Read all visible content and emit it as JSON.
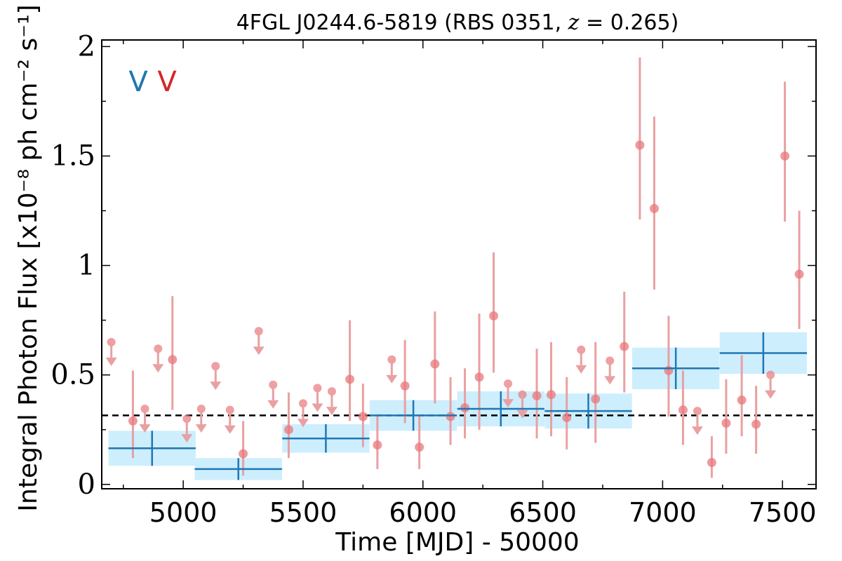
{
  "chart_data": {
    "type": "scatter",
    "title": "4FGL J0244.6-5819 (RBS 0351, z = 0.265)",
    "title_prefix": "4FGL J0244.6-5819 (RBS 0351, ",
    "title_var": "z",
    "title_eq": " = 0.265)",
    "xlabel": "Time [MJD] - 50000",
    "ylabel": "Integral Photon Flux [x10⁻⁸ ph cm⁻² s⁻¹]",
    "xlim": [
      4660,
      7640
    ],
    "ylim": [
      -0.02,
      2.03
    ],
    "x_ticks": [
      5000,
      5500,
      6000,
      6500,
      7000,
      7500
    ],
    "x_tick_labels": [
      "5000",
      "5500",
      "6000",
      "6500",
      "7000",
      "7500"
    ],
    "y_ticks": [
      0,
      0.5,
      1,
      1.5,
      2
    ],
    "y_tick_labels": [
      "0",
      "0.5",
      "1",
      "1.5",
      "2"
    ],
    "grid": false,
    "mean_flux": 0.315,
    "legend_markers": [
      {
        "text": "V",
        "color": "#1f77b4"
      },
      {
        "text": "V",
        "color": "#d62728"
      }
    ],
    "colors": {
      "points": "#e8777b",
      "errorbars": "#e9a0a2",
      "bins_line": "#1f77b4",
      "bins_fill": "#cdeefd",
      "mean_line": "#000000"
    },
    "binned": [
      {
        "x": 4870,
        "xerr": 182,
        "y": 0.165,
        "yerr": 0.08
      },
      {
        "x": 5230,
        "xerr": 182,
        "y": 0.07,
        "yerr": 0.05
      },
      {
        "x": 5595,
        "xerr": 182,
        "y": 0.21,
        "yerr": 0.065
      },
      {
        "x": 5960,
        "xerr": 182,
        "y": 0.315,
        "yerr": 0.07
      },
      {
        "x": 6325,
        "xerr": 182,
        "y": 0.345,
        "yerr": 0.08
      },
      {
        "x": 6690,
        "xerr": 182,
        "y": 0.335,
        "yerr": 0.08
      },
      {
        "x": 7055,
        "xerr": 182,
        "y": 0.53,
        "yerr": 0.095
      },
      {
        "x": 7420,
        "xerr": 182,
        "y": 0.6,
        "yerr": 0.095
      }
    ],
    "points": [
      {
        "x": 4790,
        "y": 0.29,
        "lo": 0.12,
        "hi": 0.52
      },
      {
        "x": 4955,
        "y": 0.57,
        "lo": 0.34,
        "hi": 0.86
      },
      {
        "x": 5250,
        "y": 0.14,
        "lo": 0.04,
        "hi": 0.29
      },
      {
        "x": 5440,
        "y": 0.25,
        "lo": 0.12,
        "hi": 0.42
      },
      {
        "x": 5695,
        "y": 0.48,
        "lo": 0.29,
        "hi": 0.75
      },
      {
        "x": 5750,
        "y": 0.31,
        "lo": 0.17,
        "hi": 0.46
      },
      {
        "x": 5810,
        "y": 0.18,
        "lo": 0.07,
        "hi": 0.32
      },
      {
        "x": 5925,
        "y": 0.45,
        "lo": 0.28,
        "hi": 0.66
      },
      {
        "x": 5985,
        "y": 0.17,
        "lo": 0.07,
        "hi": 0.32
      },
      {
        "x": 6050,
        "y": 0.55,
        "lo": 0.37,
        "hi": 0.79
      },
      {
        "x": 6115,
        "y": 0.31,
        "lo": 0.18,
        "hi": 0.49
      },
      {
        "x": 6175,
        "y": 0.35,
        "lo": 0.21,
        "hi": 0.53
      },
      {
        "x": 6235,
        "y": 0.49,
        "lo": 0.25,
        "hi": 0.78
      },
      {
        "x": 6295,
        "y": 0.77,
        "lo": 0.51,
        "hi": 1.06
      },
      {
        "x": 6475,
        "y": 0.405,
        "lo": 0.21,
        "hi": 0.62
      },
      {
        "x": 6535,
        "y": 0.41,
        "lo": 0.22,
        "hi": 0.65
      },
      {
        "x": 6600,
        "y": 0.305,
        "lo": 0.16,
        "hi": 0.49
      },
      {
        "x": 6720,
        "y": 0.39,
        "lo": 0.19,
        "hi": 0.65
      },
      {
        "x": 6840,
        "y": 0.63,
        "lo": 0.42,
        "hi": 0.88
      },
      {
        "x": 6905,
        "y": 1.55,
        "lo": 1.21,
        "hi": 1.95
      },
      {
        "x": 6965,
        "y": 1.26,
        "lo": 0.89,
        "hi": 1.68
      },
      {
        "x": 7025,
        "y": 0.52,
        "lo": 0.31,
        "hi": 0.77
      },
      {
        "x": 7085,
        "y": 0.34,
        "lo": 0.18,
        "hi": 0.52
      },
      {
        "x": 7205,
        "y": 0.1,
        "lo": 0.03,
        "hi": 0.22
      },
      {
        "x": 7265,
        "y": 0.28,
        "lo": 0.14,
        "hi": 0.48
      },
      {
        "x": 7330,
        "y": 0.385,
        "lo": 0.22,
        "hi": 0.59
      },
      {
        "x": 7390,
        "y": 0.275,
        "lo": 0.14,
        "hi": 0.45
      },
      {
        "x": 7510,
        "y": 1.5,
        "lo": 1.2,
        "hi": 1.84
      },
      {
        "x": 7570,
        "y": 0.96,
        "lo": 0.71,
        "hi": 1.25
      }
    ],
    "upper_limits": [
      {
        "x": 4700,
        "y": 0.65
      },
      {
        "x": 4840,
        "y": 0.345
      },
      {
        "x": 4895,
        "y": 0.62
      },
      {
        "x": 5015,
        "y": 0.3
      },
      {
        "x": 5075,
        "y": 0.345
      },
      {
        "x": 5135,
        "y": 0.54
      },
      {
        "x": 5195,
        "y": 0.34
      },
      {
        "x": 5315,
        "y": 0.7
      },
      {
        "x": 5375,
        "y": 0.455
      },
      {
        "x": 5500,
        "y": 0.37
      },
      {
        "x": 5560,
        "y": 0.44
      },
      {
        "x": 5620,
        "y": 0.425
      },
      {
        "x": 5870,
        "y": 0.57
      },
      {
        "x": 6355,
        "y": 0.46
      },
      {
        "x": 6415,
        "y": 0.41
      },
      {
        "x": 6660,
        "y": 0.615
      },
      {
        "x": 6780,
        "y": 0.565
      },
      {
        "x": 7145,
        "y": 0.335
      },
      {
        "x": 7450,
        "y": 0.5
      }
    ]
  }
}
